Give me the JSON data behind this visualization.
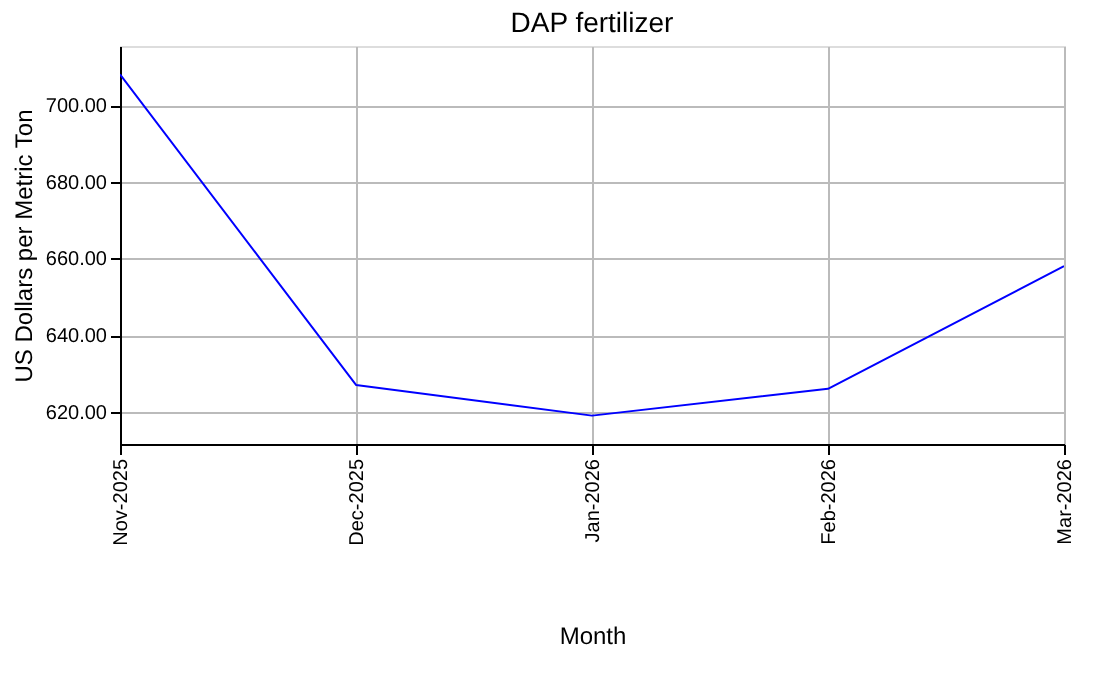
{
  "chart_data": {
    "type": "line",
    "title": "DAP fertilizer",
    "xlabel": "Month",
    "ylabel": "US Dollars per Metric Ton",
    "categories": [
      "Nov-2025",
      "Dec-2025",
      "Jan-2026",
      "Feb-2026",
      "Mar-2026"
    ],
    "series": [
      {
        "color": "#0000ff",
        "values": [
          708,
          627,
          619,
          626,
          658
        ]
      }
    ],
    "ylim": [
      611.6,
      715.4
    ],
    "yticks": [
      {
        "value": 620,
        "label": "620.00"
      },
      {
        "value": 640,
        "label": "640.00"
      },
      {
        "value": 660,
        "label": "660.00"
      },
      {
        "value": 680,
        "label": "680.00"
      },
      {
        "value": 700,
        "label": "700.00"
      }
    ],
    "grid": true,
    "marker": "none",
    "line_style": "solid"
  }
}
